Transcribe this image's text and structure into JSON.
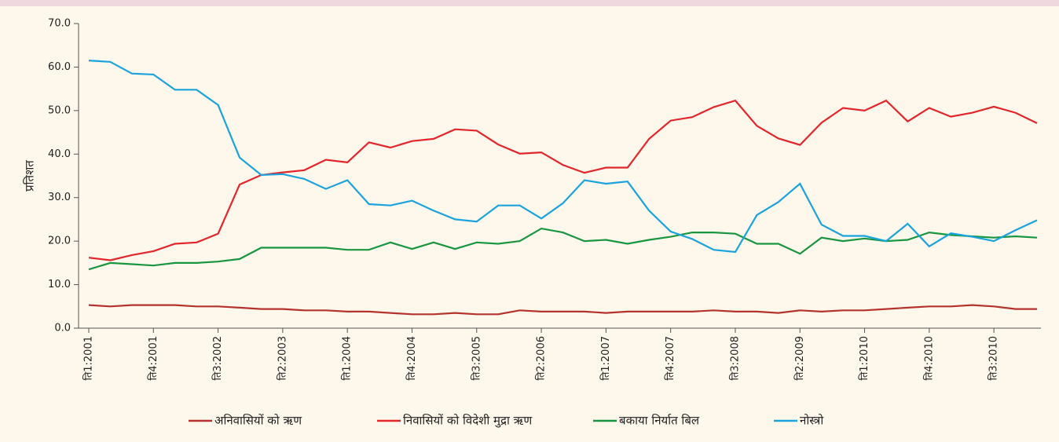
{
  "chart_data": {
    "type": "line",
    "y_label": "प्रतिशत",
    "categories": [
      "ति1:2001",
      null,
      null,
      "ति4:2001",
      null,
      null,
      "ति3:2002",
      null,
      null,
      "ति2:2003",
      null,
      null,
      "ति1:2004",
      null,
      null,
      "ति4:2004",
      null,
      null,
      "ति3:2005",
      null,
      null,
      "ति2:2006",
      null,
      null,
      "ति1:2007",
      null,
      null,
      "ति4:2007",
      null,
      null,
      "ति3:2008",
      null,
      null,
      "ति2:2009",
      null,
      null,
      "ति1:2010",
      null,
      null,
      "ति4:2010",
      null,
      null,
      "ति3:2010",
      null,
      null
    ],
    "series": [
      {
        "name": "अनिवासियों को ऋण",
        "color": "#b5332e",
        "values": [
          5.3,
          5.0,
          5.3,
          5.3,
          5.3,
          5.0,
          5.0,
          4.7,
          4.4,
          4.4,
          4.1,
          4.1,
          3.8,
          3.8,
          3.5,
          3.2,
          3.2,
          3.5,
          3.2,
          3.2,
          4.1,
          3.8,
          3.8,
          3.8,
          3.5,
          3.8,
          3.8,
          3.8,
          3.8,
          4.1,
          3.8,
          3.8,
          3.5,
          4.1,
          3.8,
          4.1,
          4.1,
          4.4,
          4.7,
          5.0,
          5.0,
          5.3,
          5.0,
          4.4,
          4.4
        ]
      },
      {
        "name": "निवासियों को विदेशी मुद्रा ऋण",
        "color": "#e3262b",
        "values": [
          16.2,
          15.6,
          16.8,
          17.7,
          19.4,
          19.7,
          21.7,
          33.0,
          35.2,
          35.8,
          36.3,
          38.7,
          38.1,
          42.7,
          41.5,
          43.0,
          43.5,
          45.7,
          45.4,
          42.2,
          40.1,
          40.4,
          37.5,
          35.7,
          36.9,
          36.9,
          43.5,
          47.7,
          48.5,
          50.8,
          52.3,
          46.5,
          43.6,
          42.1,
          47.2,
          50.6,
          50.0,
          52.3,
          47.5,
          50.6,
          48.6,
          49.5,
          50.9,
          49.5,
          47.1
        ]
      },
      {
        "name": "बकाया निर्यात बिल",
        "color": "#1a9641",
        "values": [
          13.5,
          15.0,
          14.7,
          14.4,
          15.0,
          15.0,
          15.3,
          15.9,
          18.5,
          18.5,
          18.5,
          18.5,
          18.0,
          18.0,
          19.7,
          18.2,
          19.7,
          18.2,
          19.7,
          19.4,
          20.0,
          22.9,
          22.0,
          20.0,
          20.3,
          19.4,
          20.3,
          21.0,
          22.0,
          22.0,
          21.7,
          19.4,
          19.4,
          17.1,
          20.8,
          20.0,
          20.6,
          20.0,
          20.3,
          22.0,
          21.4,
          21.1,
          20.8,
          21.1,
          20.8
        ]
      },
      {
        "name": "नोस्त्रो",
        "color": "#1aa3dc",
        "values": [
          61.5,
          61.2,
          58.5,
          58.3,
          54.8,
          54.8,
          51.3,
          39.2,
          35.2,
          35.4,
          34.3,
          32.0,
          34.0,
          28.5,
          28.2,
          29.3,
          27.0,
          25.0,
          24.5,
          28.2,
          28.2,
          25.2,
          28.7,
          34.0,
          33.2,
          33.7,
          27.0,
          22.2,
          20.5,
          18.0,
          17.5,
          26.0,
          29.0,
          33.2,
          23.8,
          21.2,
          21.2,
          20.0,
          24.0,
          18.8,
          21.8,
          21.0,
          20.0,
          22.5,
          24.8
        ]
      }
    ],
    "ylim": [
      0,
      70
    ],
    "yticks": [
      {
        "value": 0,
        "label": "0.0"
      },
      {
        "value": 10,
        "label": "10.0"
      },
      {
        "value": 20,
        "label": "20.0"
      },
      {
        "value": 30,
        "label": "30.0"
      },
      {
        "value": 40,
        "label": "40.0"
      },
      {
        "value": 50,
        "label": "50.0"
      },
      {
        "value": 60,
        "label": "60.0"
      },
      {
        "value": 70,
        "label": "70.0"
      }
    ],
    "grid": false,
    "legend": "bottom"
  }
}
